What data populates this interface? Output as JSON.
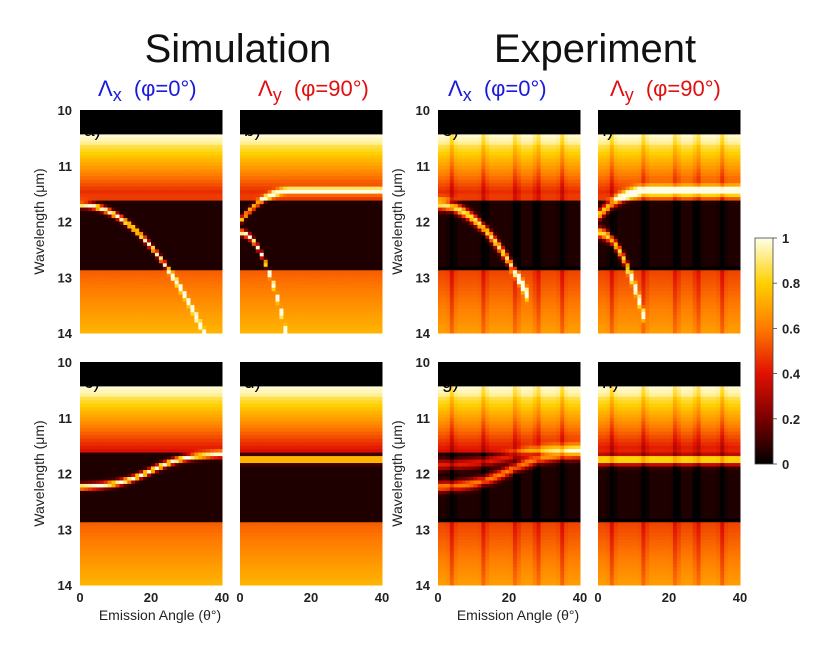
{
  "figure": {
    "left_title": "Simulation",
    "right_title": "Experiment",
    "column_labels": [
      {
        "text": "Λx (φ=0°)",
        "main": "Λ",
        "sub": "x",
        "rest": " (φ=0°)",
        "color": "#1a1adb"
      },
      {
        "text": "Λy (φ=90°)",
        "main": "Λ",
        "sub": "y",
        "rest": " (φ=90°)",
        "color": "#e01010"
      },
      {
        "text": "Λx (φ=0°)",
        "main": "Λ",
        "sub": "x",
        "rest": " (φ=0°)",
        "color": "#1a1adb"
      },
      {
        "text": "Λy (φ=90°)",
        "main": "Λ",
        "sub": "y",
        "rest": " (φ=90°)",
        "color": "#e01010"
      }
    ]
  },
  "chart_data": {
    "type": "heatmap",
    "xlabel": "Emission Angle (θ°)",
    "ylabel": "Wavelength (μm)",
    "xlim": [
      0,
      40
    ],
    "ylim": [
      10,
      14
    ],
    "xticks": [
      0,
      20,
      40
    ],
    "yticks": [
      10,
      11,
      12,
      13,
      14
    ],
    "colorbar": {
      "range": [
        0,
        1
      ],
      "ticks": [
        "0",
        "0.2",
        "0.4",
        "0.6",
        "0.8",
        "1"
      ],
      "colormap": "hot",
      "stops": [
        "#000000",
        "#7a0000",
        "#e01000",
        "#ff7a00",
        "#ffd000",
        "#ffffe8"
      ]
    },
    "panels": [
      {
        "label": "a)",
        "pol": "p-pol",
        "source": "simulation",
        "period": "x",
        "row": 0,
        "col": 0,
        "modes": [
          {
            "type": "parabola",
            "lambda0": 11.7,
            "angle0": 0,
            "lambda_end": 14.0,
            "angle_end": 35,
            "strength": 1.0
          }
        ]
      },
      {
        "label": "b)",
        "pol": "p-pol",
        "source": "simulation",
        "period": "y",
        "row": 0,
        "col": 1,
        "modes": [
          {
            "type": "parabola",
            "lambda0": 12.2,
            "angle0": 0,
            "lambda_end": 14.0,
            "angle_end": 13,
            "strength": 1.0
          },
          {
            "type": "rise",
            "lambda0": 12.0,
            "lambda_end": 11.45,
            "angle_end": 40,
            "strength": 0.8
          }
        ]
      },
      {
        "label": "c)",
        "pol": "s-pol",
        "source": "simulation",
        "period": "x",
        "row": 1,
        "col": 0,
        "modes": [
          {
            "type": "scurve",
            "lambda0": 12.25,
            "lambda_end": 11.65,
            "strength": 1.0
          }
        ]
      },
      {
        "label": "d)",
        "pol": "s-pol",
        "source": "simulation",
        "period": "y",
        "row": 1,
        "col": 1,
        "modes": [
          {
            "type": "flat",
            "lambda0": 11.75,
            "strength": 1.0
          }
        ]
      },
      {
        "label": "e)",
        "pol": "p-pol",
        "source": "experiment",
        "period": "x",
        "row": 0,
        "col": 2,
        "modes": [
          {
            "type": "parabola",
            "lambda0": 11.7,
            "angle0": 0,
            "lambda_end": 13.3,
            "angle_end": 25,
            "strength": 0.9
          }
        ]
      },
      {
        "label": "f)",
        "pol": "p-pol",
        "source": "experiment",
        "period": "y",
        "row": 0,
        "col": 3,
        "modes": [
          {
            "type": "parabola",
            "lambda0": 12.2,
            "angle0": 0,
            "lambda_end": 13.5,
            "angle_end": 12,
            "strength": 0.85
          },
          {
            "type": "rise",
            "lambda0": 11.9,
            "lambda_end": 11.45,
            "angle_end": 40,
            "strength": 0.8
          }
        ]
      },
      {
        "label": "g)",
        "pol": "s-pol",
        "source": "experiment",
        "period": "x",
        "row": 1,
        "col": 2,
        "modes": [
          {
            "type": "scurve",
            "lambda0": 12.25,
            "lambda_end": 11.65,
            "strength": 0.6
          },
          {
            "type": "scurve",
            "lambda0": 11.85,
            "lambda_end": 11.55,
            "strength": 0.4
          }
        ]
      },
      {
        "label": "h)",
        "pol": "s-pol",
        "source": "experiment",
        "period": "y",
        "row": 1,
        "col": 3,
        "modes": [
          {
            "type": "flat",
            "lambda0": 11.75,
            "strength": 0.9
          }
        ]
      }
    ]
  }
}
